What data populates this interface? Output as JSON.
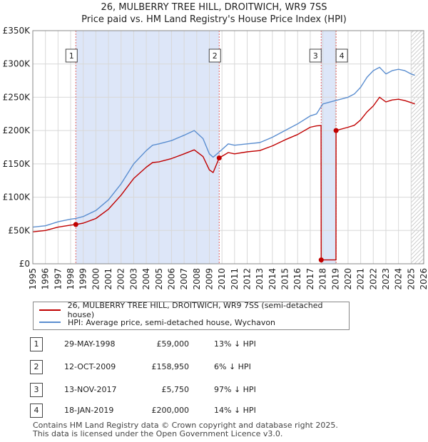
{
  "title_line1": "26, MULBERRY TREE HILL, DROITWICH, WR9 7SS",
  "title_line2": "Price paid vs. HM Land Registry's House Price Index (HPI)",
  "chart_data": {
    "type": "line",
    "title": "Price paid vs. HM Land Registry's House Price Index (HPI)",
    "xlabel": "",
    "ylabel": "",
    "xlim": [
      1995,
      2026
    ],
    "ylim": [
      0,
      350000
    ],
    "y_ticks": [
      0,
      50000,
      100000,
      150000,
      200000,
      250000,
      300000,
      350000
    ],
    "y_tick_labels": [
      "£0",
      "£50K",
      "£100K",
      "£150K",
      "£200K",
      "£250K",
      "£300K",
      "£350K"
    ],
    "x_ticks": [
      1995,
      1996,
      1997,
      1998,
      1999,
      2000,
      2001,
      2002,
      2003,
      2004,
      2005,
      2006,
      2007,
      2008,
      2009,
      2010,
      2011,
      2012,
      2013,
      2014,
      2015,
      2016,
      2017,
      2018,
      2019,
      2020,
      2021,
      2022,
      2023,
      2024,
      2025,
      2026
    ],
    "grid": true,
    "colors": {
      "hpi": "#5b8ed0",
      "price": "#c00000",
      "shade": "#dde6f8",
      "vline": "#e06060"
    },
    "series": [
      {
        "name": "HPI: Average price, semi-detached house, Wychavon",
        "x": [
          1995.0,
          1996.0,
          1997.0,
          1998.0,
          1998.4,
          1999.0,
          2000.0,
          2001.0,
          2002.0,
          2003.0,
          2004.0,
          2004.5,
          2005.0,
          2006.0,
          2007.0,
          2007.8,
          2008.5,
          2009.0,
          2009.3,
          2009.8,
          2010.5,
          2011.0,
          2012.0,
          2013.0,
          2014.0,
          2015.0,
          2016.0,
          2017.0,
          2017.5,
          2018.0,
          2019.0,
          2020.0,
          2020.5,
          2021.0,
          2021.5,
          2022.0,
          2022.5,
          2023.0,
          2023.5,
          2024.0,
          2024.5,
          2025.0,
          2025.3
        ],
        "y": [
          55000,
          57000,
          63000,
          67000,
          68000,
          71000,
          80000,
          96000,
          120000,
          150000,
          170000,
          178000,
          180000,
          185000,
          193000,
          200000,
          188000,
          165000,
          160000,
          168000,
          180000,
          178000,
          180000,
          182000,
          190000,
          200000,
          210000,
          222000,
          225000,
          240000,
          245000,
          250000,
          255000,
          265000,
          280000,
          290000,
          295000,
          285000,
          290000,
          292000,
          290000,
          285000,
          283000
        ]
      },
      {
        "name": "26, MULBERRY TREE HILL, DROITWICH, WR9 7SS (semi-detached house)",
        "x": [
          1995.0,
          1996.0,
          1997.0,
          1998.0,
          1998.41,
          1999.0,
          2000.0,
          2001.0,
          2002.0,
          2003.0,
          2004.0,
          2004.5,
          2005.0,
          2006.0,
          2007.0,
          2007.8,
          2008.5,
          2009.0,
          2009.3,
          2009.78,
          2010.5,
          2011.0,
          2012.0,
          2013.0,
          2014.0,
          2015.0,
          2016.0,
          2017.0,
          2017.5,
          2017.86,
          2017.87,
          2019.04,
          2019.05,
          2020.0,
          2020.5,
          2021.0,
          2021.5,
          2022.0,
          2022.5,
          2023.0,
          2023.5,
          2024.0,
          2024.5,
          2025.0,
          2025.3
        ],
        "y": [
          48000,
          50000,
          55000,
          58000,
          59000,
          61000,
          68000,
          82000,
          103000,
          128000,
          145000,
          152000,
          153000,
          158000,
          165000,
          171000,
          161000,
          141000,
          137000,
          158950,
          167000,
          165000,
          168000,
          170000,
          177000,
          186000,
          194000,
          205000,
          207000,
          207500,
          5750,
          5750,
          200000,
          205000,
          208000,
          216000,
          228000,
          237000,
          250000,
          243000,
          246000,
          247000,
          245000,
          242000,
          240000
        ]
      }
    ],
    "annotations": [
      {
        "label": "1",
        "x": 1998.41
      },
      {
        "label": "2",
        "x": 2009.78
      },
      {
        "label": "3",
        "x": 2017.87
      },
      {
        "label": "4",
        "x": 2019.05
      }
    ],
    "sale_points": [
      {
        "x": 1998.41,
        "y": 59000
      },
      {
        "x": 2009.78,
        "y": 158950
      },
      {
        "x": 2017.87,
        "y": 5750
      },
      {
        "x": 2019.05,
        "y": 200000
      }
    ],
    "shaded_ranges": [
      [
        1998.41,
        2009.78
      ],
      [
        2017.87,
        2019.05
      ]
    ],
    "hatch_from": 2025.0
  },
  "legend": {
    "price_label": "26, MULBERRY TREE HILL, DROITWICH, WR9 7SS (semi-detached house)",
    "hpi_label": "HPI: Average price, semi-detached house, Wychavon"
  },
  "sales": [
    {
      "num": "1",
      "date": "29-MAY-1998",
      "price": "£59,000",
      "hpi": "13% ↓ HPI"
    },
    {
      "num": "2",
      "date": "12-OCT-2009",
      "price": "£158,950",
      "hpi": "6% ↓ HPI"
    },
    {
      "num": "3",
      "date": "13-NOV-2017",
      "price": "£5,750",
      "hpi": "97% ↓ HPI"
    },
    {
      "num": "4",
      "date": "18-JAN-2019",
      "price": "£200,000",
      "hpi": "14% ↓ HPI"
    }
  ],
  "footer": {
    "line1": "Contains HM Land Registry data © Crown copyright and database right 2025.",
    "line2": "This data is licensed under the Open Government Licence v3.0."
  }
}
